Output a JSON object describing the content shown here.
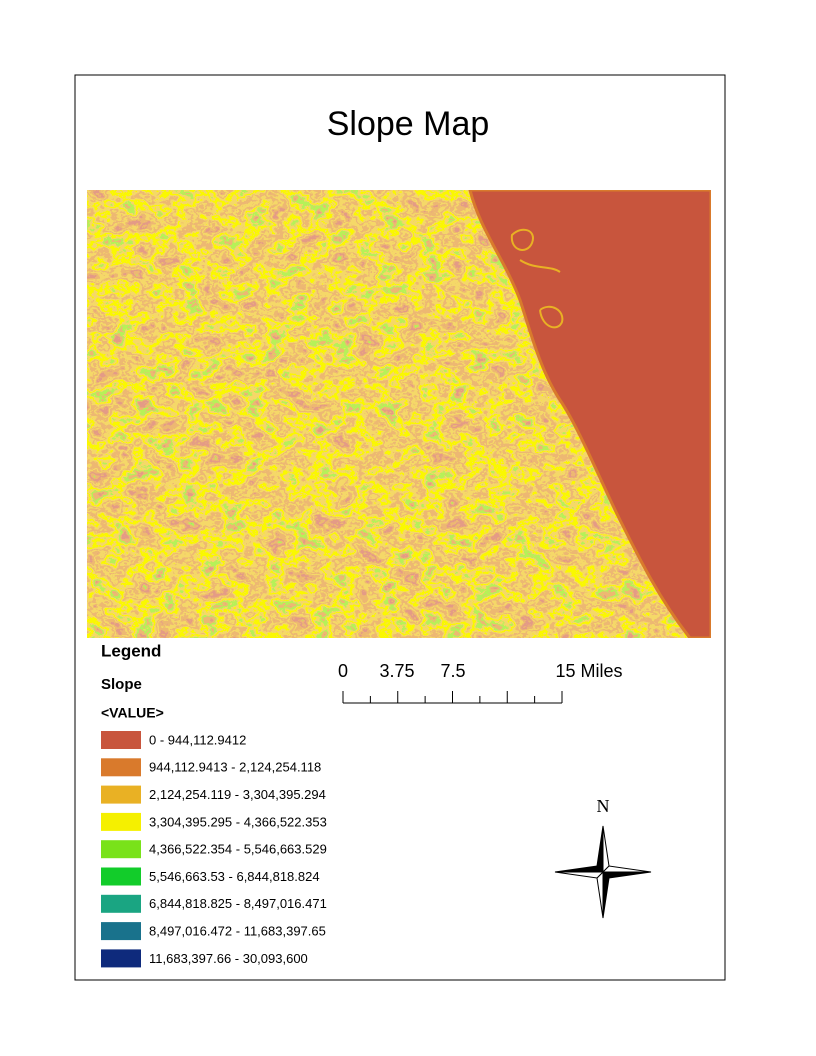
{
  "title": "Slope Map",
  "legend": {
    "title": "Legend",
    "layer": "Slope",
    "field": "<VALUE>",
    "items": [
      {
        "label": "0 - 944,112.9412",
        "color": "#c8553d"
      },
      {
        "label": "944,112.9413 - 2,124,254.118",
        "color": "#d97a2c"
      },
      {
        "label": "2,124,254.119 - 3,304,395.294",
        "color": "#e9b124"
      },
      {
        "label": "3,304,395.295 - 4,366,522.353",
        "color": "#f5f000"
      },
      {
        "label": "4,366,522.354 - 5,546,663.529",
        "color": "#79e21a"
      },
      {
        "label": "5,546,663.53 - 6,844,818.824",
        "color": "#12cc2a"
      },
      {
        "label": "6,844,818.825 - 8,497,016.471",
        "color": "#1aa582"
      },
      {
        "label": "8,497,016.472 - 11,683,397.65",
        "color": "#19728c"
      },
      {
        "label": "11,683,397.66 - 30,093,600",
        "color": "#0e2a7c"
      }
    ]
  },
  "scale_bar": {
    "labels": [
      "0",
      "3.75",
      "7.5",
      "15 Miles"
    ]
  },
  "north_arrow": {
    "label": "N"
  }
}
